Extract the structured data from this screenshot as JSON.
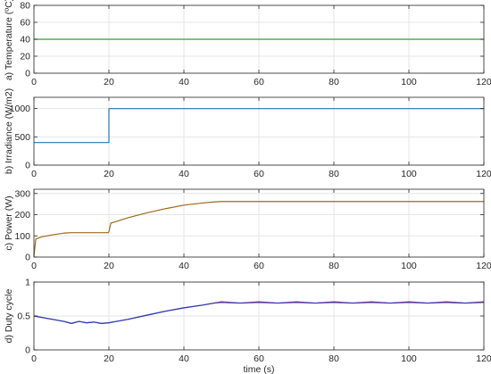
{
  "chart_data": [
    {
      "type": "line",
      "ylabel": "a) Temperature (ºC)",
      "xlabel": "",
      "xlim": [
        0,
        120
      ],
      "ylim": [
        0,
        80
      ],
      "xticks": [
        0,
        20,
        40,
        60,
        80,
        100,
        120
      ],
      "yticks": [
        0,
        20,
        40,
        60,
        80
      ],
      "grid": true,
      "series": [
        {
          "color": "#2ca02c",
          "x": [
            0,
            120
          ],
          "y": [
            40,
            40
          ]
        }
      ]
    },
    {
      "type": "line",
      "ylabel": "b) Irradiance (W/m2)",
      "xlabel": "",
      "xlim": [
        0,
        120
      ],
      "ylim": [
        0,
        1200
      ],
      "xticks": [
        0,
        20,
        40,
        60,
        80,
        100,
        120
      ],
      "yticks": [
        0,
        500,
        1000
      ],
      "grid": true,
      "series": [
        {
          "color": "#1f77b4",
          "x": [
            0,
            20,
            20,
            120
          ],
          "y": [
            400,
            400,
            1000,
            1000
          ]
        }
      ]
    },
    {
      "type": "line",
      "ylabel": "c) Power (W)",
      "xlabel": "",
      "xlim": [
        0,
        120
      ],
      "ylim": [
        0,
        320
      ],
      "xticks": [
        0,
        20,
        40,
        60,
        80,
        100,
        120
      ],
      "yticks": [
        0,
        100,
        200,
        300
      ],
      "grid": true,
      "series": [
        {
          "color": "#9b6a1c",
          "x": [
            0,
            0.5,
            2,
            5,
            8,
            10,
            19.8,
            20,
            20.5,
            25,
            30,
            35,
            40,
            45,
            48,
            50,
            60,
            70,
            80,
            90,
            100,
            110,
            120
          ],
          "y": [
            5,
            85,
            95,
            105,
            113,
            115,
            115,
            120,
            160,
            185,
            208,
            228,
            245,
            255,
            260,
            262,
            262,
            262,
            262,
            262,
            262,
            262,
            262
          ]
        }
      ]
    },
    {
      "type": "line",
      "ylabel": "d) Duty cycle",
      "xlabel": "time (s)",
      "xlim": [
        0,
        120
      ],
      "ylim": [
        0,
        1
      ],
      "xticks": [
        0,
        20,
        40,
        60,
        80,
        100,
        120
      ],
      "yticks": [
        0,
        0.5,
        1
      ],
      "grid": true,
      "series": [
        {
          "color": "#d62728",
          "x": [
            0,
            4,
            8,
            10,
            12,
            14,
            16,
            18,
            20,
            25,
            30,
            35,
            40,
            45,
            48,
            50,
            55,
            60,
            65,
            70,
            75,
            80,
            85,
            90,
            95,
            100,
            105,
            110,
            115,
            120
          ],
          "y": [
            0.5,
            0.46,
            0.42,
            0.39,
            0.42,
            0.4,
            0.41,
            0.39,
            0.4,
            0.45,
            0.51,
            0.57,
            0.62,
            0.66,
            0.69,
            0.71,
            0.69,
            0.71,
            0.69,
            0.71,
            0.69,
            0.71,
            0.69,
            0.71,
            0.69,
            0.71,
            0.69,
            0.71,
            0.69,
            0.71
          ]
        },
        {
          "color": "#1f3fbf",
          "x": [
            0,
            4,
            8,
            10,
            12,
            14,
            16,
            18,
            20,
            25,
            30,
            35,
            40,
            45,
            48,
            50,
            55,
            60,
            65,
            70,
            75,
            80,
            85,
            90,
            95,
            100,
            105,
            110,
            115,
            120
          ],
          "y": [
            0.5,
            0.46,
            0.42,
            0.39,
            0.42,
            0.4,
            0.41,
            0.39,
            0.4,
            0.45,
            0.51,
            0.57,
            0.62,
            0.66,
            0.69,
            0.7,
            0.69,
            0.7,
            0.69,
            0.7,
            0.69,
            0.7,
            0.69,
            0.7,
            0.69,
            0.7,
            0.69,
            0.7,
            0.69,
            0.7
          ]
        }
      ]
    }
  ]
}
